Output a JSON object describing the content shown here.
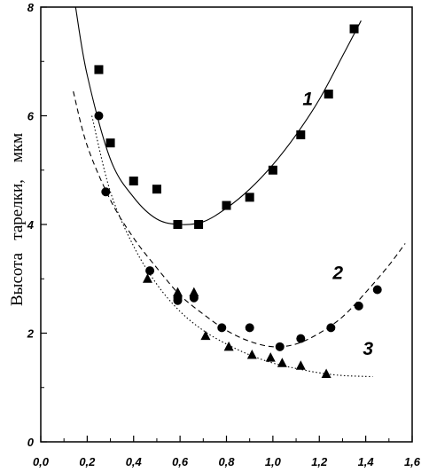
{
  "chart_data": {
    "type": "scatter",
    "title": "",
    "xlabel": "",
    "ylabel": "Высота   тарелки,    мкм",
    "xlim": [
      0.0,
      1.6
    ],
    "ylim": [
      0,
      8
    ],
    "x_ticks": [
      "0,0",
      "0,2",
      "0,4",
      "0,6",
      "0,8",
      "1,0",
      "1,2",
      "1,4",
      "1,6"
    ],
    "y_ticks": [
      "0",
      "2",
      "4",
      "6",
      "8"
    ],
    "grid": false,
    "legend": "none",
    "series": [
      {
        "label": "1",
        "marker": "square",
        "points": [
          [
            0.25,
            6.85
          ],
          [
            0.3,
            5.5
          ],
          [
            0.4,
            4.8
          ],
          [
            0.5,
            4.65
          ],
          [
            0.59,
            4.0
          ],
          [
            0.68,
            4.0
          ],
          [
            0.8,
            4.35
          ],
          [
            0.9,
            4.5
          ],
          [
            1.0,
            5.0
          ],
          [
            1.12,
            5.65
          ],
          [
            1.24,
            6.4
          ],
          [
            1.35,
            7.6
          ]
        ],
        "fit": {
          "style": "solid",
          "x": [
            0.15,
            0.2,
            0.3,
            0.4,
            0.5,
            0.6,
            0.7,
            0.8,
            0.9,
            1.0,
            1.1,
            1.2,
            1.3,
            1.38
          ],
          "y": [
            8.0,
            6.75,
            5.2,
            4.5,
            4.1,
            4.0,
            4.05,
            4.3,
            4.65,
            5.1,
            5.65,
            6.3,
            7.1,
            7.75
          ]
        }
      },
      {
        "label": "2",
        "marker": "circle",
        "points": [
          [
            0.25,
            6.0
          ],
          [
            0.28,
            4.6
          ],
          [
            0.47,
            3.15
          ],
          [
            0.59,
            2.65
          ],
          [
            0.59,
            2.6
          ],
          [
            0.66,
            2.65
          ],
          [
            0.78,
            2.1
          ],
          [
            0.9,
            2.1
          ],
          [
            1.03,
            1.75
          ],
          [
            1.12,
            1.9
          ],
          [
            1.25,
            2.1
          ],
          [
            1.37,
            2.5
          ],
          [
            1.45,
            2.8
          ]
        ],
        "fit": {
          "style": "dashed",
          "x": [
            0.14,
            0.2,
            0.3,
            0.4,
            0.5,
            0.6,
            0.7,
            0.8,
            0.9,
            1.0,
            1.1,
            1.2,
            1.3,
            1.4,
            1.5,
            1.57
          ],
          "y": [
            6.45,
            5.45,
            4.45,
            3.75,
            3.2,
            2.7,
            2.35,
            2.05,
            1.85,
            1.75,
            1.8,
            2.0,
            2.3,
            2.75,
            3.25,
            3.65
          ]
        }
      },
      {
        "label": "3",
        "marker": "triangle",
        "points": [
          [
            0.46,
            3.0
          ],
          [
            0.59,
            2.75
          ],
          [
            0.66,
            2.75
          ],
          [
            0.71,
            1.95
          ],
          [
            0.81,
            1.75
          ],
          [
            0.91,
            1.6
          ],
          [
            0.99,
            1.55
          ],
          [
            1.04,
            1.45
          ],
          [
            1.12,
            1.4
          ],
          [
            1.23,
            1.25
          ]
        ],
        "fit": {
          "style": "dotted",
          "x": [
            0.22,
            0.3,
            0.4,
            0.5,
            0.6,
            0.7,
            0.8,
            0.9,
            1.0,
            1.1,
            1.2,
            1.3,
            1.43
          ],
          "y": [
            6.0,
            4.6,
            3.6,
            2.9,
            2.4,
            2.05,
            1.8,
            1.6,
            1.45,
            1.35,
            1.27,
            1.22,
            1.2
          ]
        }
      }
    ]
  }
}
